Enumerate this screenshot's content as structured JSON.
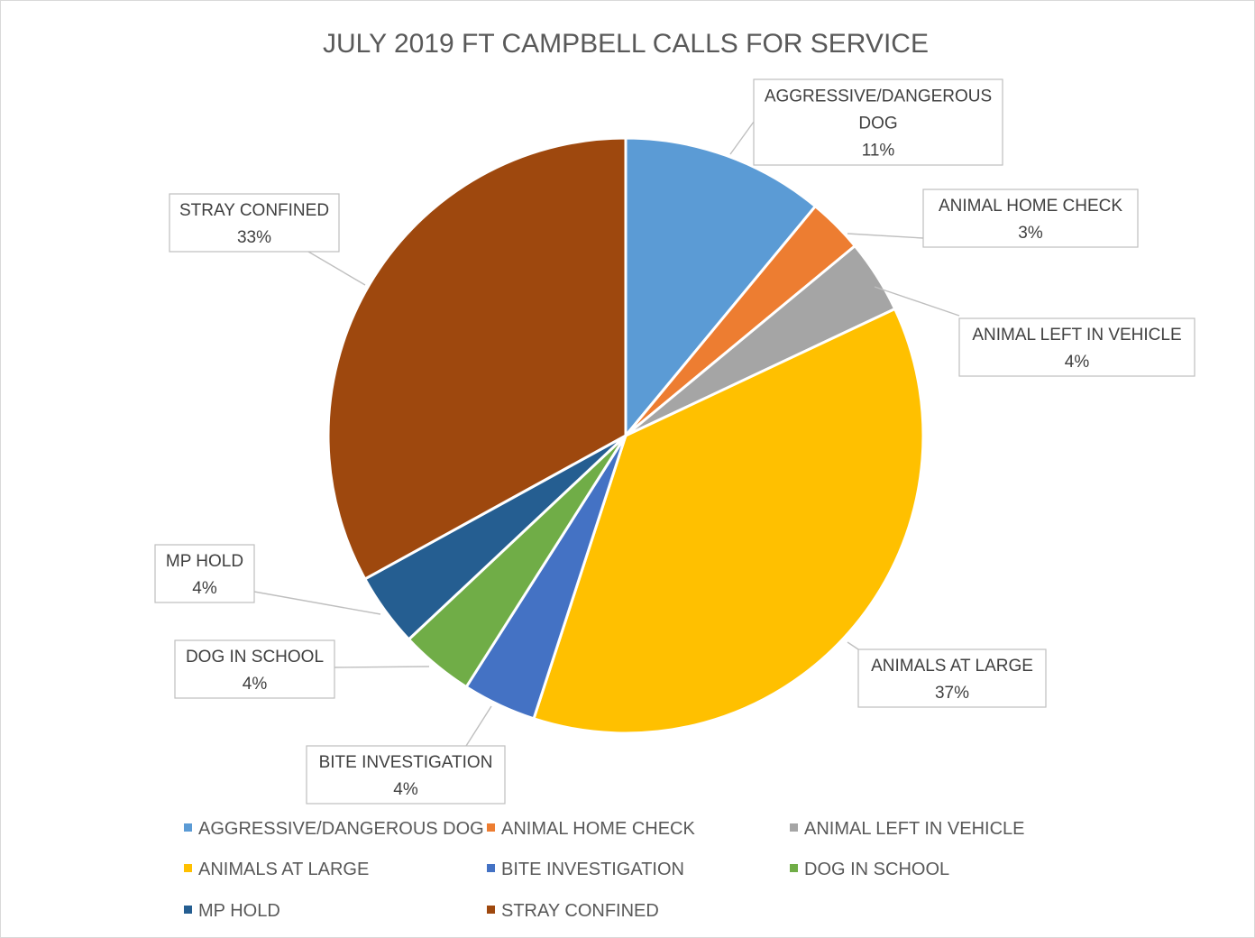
{
  "chart_data": {
    "type": "pie",
    "title": "JULY 2019 FT CAMPBELL CALLS FOR SERVICE",
    "categories": [
      "AGGRESSIVE/DANGEROUS DOG",
      "ANIMAL HOME CHECK",
      "ANIMAL LEFT IN VEHICLE",
      "ANIMALS AT LARGE",
      "BITE INVESTIGATION",
      "DOG IN SCHOOL",
      "MP HOLD",
      "STRAY CONFINED"
    ],
    "values": [
      11,
      3,
      4,
      37,
      4,
      4,
      4,
      33
    ],
    "value_labels": [
      "11%",
      "3%",
      "4%",
      "37%",
      "4%",
      "4%",
      "4%",
      "33%"
    ],
    "data_label_lines": [
      [
        "AGGRESSIVE/DANGEROUS",
        "DOG",
        "11%"
      ],
      [
        "ANIMAL HOME CHECK",
        "3%"
      ],
      [
        "ANIMAL LEFT IN VEHICLE",
        "4%"
      ],
      [
        "ANIMALS AT LARGE",
        "37%"
      ],
      [
        "BITE INVESTIGATION",
        "4%"
      ],
      [
        "DOG IN SCHOOL",
        "4%"
      ],
      [
        "MP HOLD",
        "4%"
      ],
      [
        "STRAY CONFINED",
        "33%"
      ]
    ],
    "colors": [
      "#5b9bd5",
      "#ed7d31",
      "#a5a5a5",
      "#ffc000",
      "#4472c4",
      "#70ad47",
      "#255e91",
      "#9e480e"
    ],
    "legend_position": "bottom"
  }
}
